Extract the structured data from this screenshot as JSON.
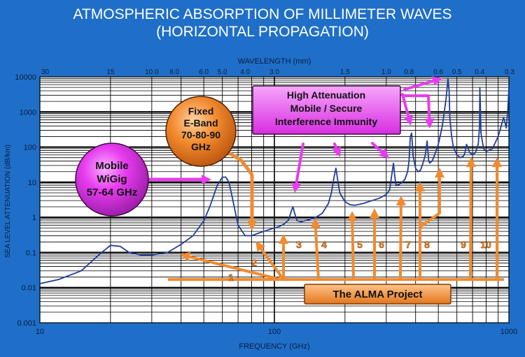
{
  "title_line1": "ATMOSPHERIC ABSORPTION OF MILLIMETER WAVES",
  "title_line2": "(HORIZONTAL PROPAGATION)",
  "colors": {
    "background": "#1f6fc9",
    "plot_background": "#ffffff",
    "curve": "#1f3d9a",
    "magenta": "#e83cf0",
    "orange": "#f28a2e",
    "title_text": "#ffffff"
  },
  "chart_data": {
    "type": "line",
    "title": "ATMOSPHERIC ABSORPTION OF MILLIMETER WAVES (HORIZONTAL PROPAGATION)",
    "xlabel": "FREQUENCY (GHz)",
    "ylabel": "SEA LEVEL ATTENUATION (dB/km)",
    "top_axis_label": "WAVELENGTH (mm)",
    "x_scale": "log",
    "y_scale": "log",
    "xlim": [
      10,
      1000
    ],
    "ylim": [
      0.001,
      10000
    ],
    "grid": true,
    "x_ticks": [
      10,
      100,
      1000
    ],
    "x_tick_labels": [
      "10",
      "100",
      "1000"
    ],
    "y_ticks": [
      0.001,
      0.01,
      0.1,
      1,
      10,
      100,
      1000,
      10000
    ],
    "y_tick_labels": [
      "0.001",
      "0.01",
      "0.1",
      "1",
      "10",
      "100",
      "1000",
      "10000"
    ],
    "wavelength_ticks": [
      {
        "label": "30",
        "freq": 10
      },
      {
        "label": "15",
        "freq": 20
      },
      {
        "label": "10.0",
        "freq": 30
      },
      {
        "label": "8.0",
        "freq": 37.5
      },
      {
        "label": "6.0",
        "freq": 50
      },
      {
        "label": "5.0",
        "freq": 60
      },
      {
        "label": "4.0",
        "freq": 75
      },
      {
        "label": "3.0",
        "freq": 100
      },
      {
        "label": "1.5",
        "freq": 200
      },
      {
        "label": "1.0",
        "freq": 300
      },
      {
        "label": "0.8",
        "freq": 375
      },
      {
        "label": "0.6",
        "freq": 500
      },
      {
        "label": "0.5",
        "freq": 600
      },
      {
        "label": "0.4",
        "freq": 750
      },
      {
        "label": "0.3",
        "freq": 1000
      }
    ],
    "series": [
      {
        "x": [
          10,
          12,
          15,
          18,
          20,
          22,
          24,
          27,
          30,
          35,
          40,
          45,
          50,
          53,
          55,
          57,
          60,
          62,
          64,
          66,
          68,
          70,
          75,
          80,
          85,
          90,
          95,
          100,
          105,
          110,
          115,
          118,
          120,
          122,
          125,
          130,
          140,
          150,
          160,
          170,
          175,
          180,
          183,
          186,
          190,
          200,
          210,
          220,
          240,
          260,
          280,
          300,
          310,
          318,
          322,
          325,
          330,
          340,
          350,
          360,
          370,
          375,
          380,
          385,
          390,
          400,
          410,
          420,
          430,
          440,
          448,
          455,
          460,
          470,
          480,
          490,
          500,
          520,
          540,
          550,
          556,
          560,
          570,
          580,
          600,
          620,
          640,
          650,
          660,
          680,
          700,
          720,
          740,
          750,
          752,
          755,
          760,
          780,
          800,
          850,
          900,
          950,
          975,
          990,
          1000
        ],
        "y": [
          0.013,
          0.017,
          0.03,
          0.09,
          0.16,
          0.15,
          0.1,
          0.085,
          0.085,
          0.1,
          0.17,
          0.3,
          0.8,
          2.0,
          4.0,
          8.0,
          14.0,
          14.0,
          10.0,
          4.0,
          1.5,
          0.6,
          0.3,
          0.3,
          0.35,
          0.4,
          0.45,
          0.5,
          0.55,
          0.65,
          0.85,
          1.5,
          2.0,
          1.3,
          0.8,
          0.75,
          0.85,
          1.0,
          1.3,
          2.5,
          5.0,
          15.0,
          25.0,
          12.0,
          5.0,
          2.8,
          2.3,
          2.2,
          2.5,
          3.0,
          3.5,
          4.5,
          6.0,
          20.0,
          35.0,
          18.0,
          8.0,
          8.5,
          10.0,
          12.0,
          20.0,
          40.0,
          200.0,
          250.0,
          60.0,
          25.0,
          20.0,
          22.0,
          35.0,
          60.0,
          150.0,
          40.0,
          35.0,
          40.0,
          55.0,
          80.0,
          120.0,
          400.0,
          2500.0,
          9000.0,
          4000.0,
          700.0,
          200.0,
          100.0,
          60.0,
          50.0,
          55.0,
          70.0,
          120.0,
          70.0,
          60.0,
          70.0,
          120.0,
          400.0,
          5000.0,
          2000.0,
          250.0,
          90.0,
          75.0,
          90.0,
          200.0,
          700.0,
          350.0,
          1200.0,
          5000.0
        ]
      }
    ]
  },
  "annotations": {
    "mobile_wigig": [
      "Mobile",
      "WiGig",
      "57-64 GHz"
    ],
    "fixed_eband": [
      "Fixed",
      "E-Band",
      "70-80-90",
      "GHz"
    ],
    "high_attenuation": [
      "High Attenuation",
      "Mobile / Secure",
      "Interference Immunity"
    ],
    "alma_project": "The ALMA Project",
    "alma_bands": [
      "1",
      "2",
      "3",
      "4",
      "5",
      "6",
      "7",
      "8",
      "9",
      "10"
    ]
  }
}
